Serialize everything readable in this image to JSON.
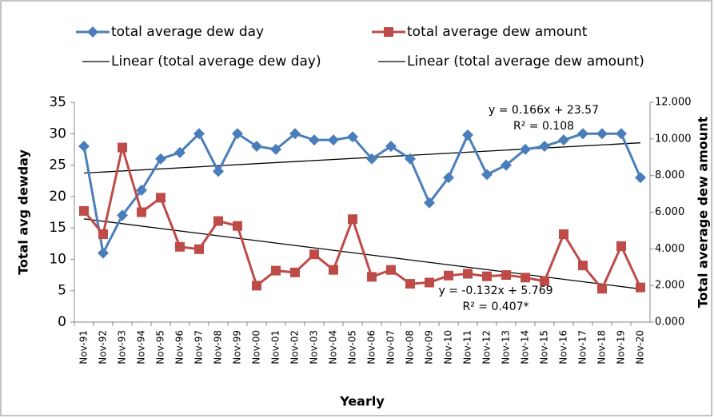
{
  "chart_data": {
    "type": "line",
    "categories": [
      "Nov-91",
      "Nov-92",
      "Nov-93",
      "Nov-94",
      "Nov-95",
      "Nov-96",
      "Nov-97",
      "Nov-98",
      "Nov-99",
      "Nov-00",
      "Nov-01",
      "Nov-02",
      "Nov-03",
      "Nov-04",
      "Nov-05",
      "Nov-06",
      "Nov-07",
      "Nov-08",
      "Nov-09",
      "Nov-10",
      "Nov-11",
      "Nov-12",
      "Nov-13",
      "Nov-14",
      "Nov-15",
      "Nov-16",
      "Nov-17",
      "Nov-18",
      "Nov-19",
      "Nov-20"
    ],
    "series": [
      {
        "name": "total average dew day",
        "color": "#4a7ebb",
        "marker": "diamond",
        "values": [
          28,
          11,
          17,
          21,
          26,
          27,
          30,
          24,
          30,
          28,
          27.5,
          30,
          29,
          29,
          29.5,
          26,
          28,
          26,
          19,
          23,
          29.8,
          23.5,
          25,
          27.5,
          28,
          29,
          30,
          30,
          30,
          23
        ]
      },
      {
        "name": "total average dew amount",
        "color": "#be4b48",
        "marker": "square",
        "axis": "y2",
        "values": [
          6.07,
          4.8,
          9.53,
          6.0,
          6.79,
          4.11,
          3.98,
          5.52,
          5.25,
          1.99,
          2.81,
          2.71,
          3.7,
          2.85,
          5.62,
          2.47,
          2.85,
          2.09,
          2.16,
          2.54,
          2.64,
          2.5,
          2.57,
          2.43,
          2.23,
          4.8,
          3.09,
          1.82,
          4.15,
          1.89
        ]
      }
    ],
    "trendlines": [
      {
        "name": "Linear (total average dew day)",
        "color": "#000000",
        "slope": 0.166,
        "intercept": 23.57,
        "equation": "y = 0.166x + 23.57",
        "r2": "R² = 0.108"
      },
      {
        "name": "Linear (total average dew amount)",
        "color": "#000000",
        "axis": "y2",
        "slope": -0.132,
        "intercept": 5.769,
        "equation": "y = -0.132x + 5.769",
        "r2": "R² = 0.407*"
      }
    ],
    "xlabel": "Yearly",
    "ylabel": "Total avg dewday",
    "y2label": "Total average dew amount",
    "ylim": [
      0,
      35
    ],
    "yticks": [
      0,
      5,
      10,
      15,
      20,
      25,
      30,
      35
    ],
    "y2lim": [
      0,
      12
    ],
    "y2ticks": [
      {
        "value": 0,
        "label": "0.000"
      },
      {
        "value": 2,
        "label": "2.000"
      },
      {
        "value": 4,
        "label": "4.000"
      },
      {
        "value": 6,
        "label": "6.000"
      },
      {
        "value": 8,
        "label": "8.000"
      },
      {
        "value": 10,
        "label": "10.000"
      },
      {
        "value": 12,
        "label": "12.000"
      }
    ],
    "grid": false
  }
}
